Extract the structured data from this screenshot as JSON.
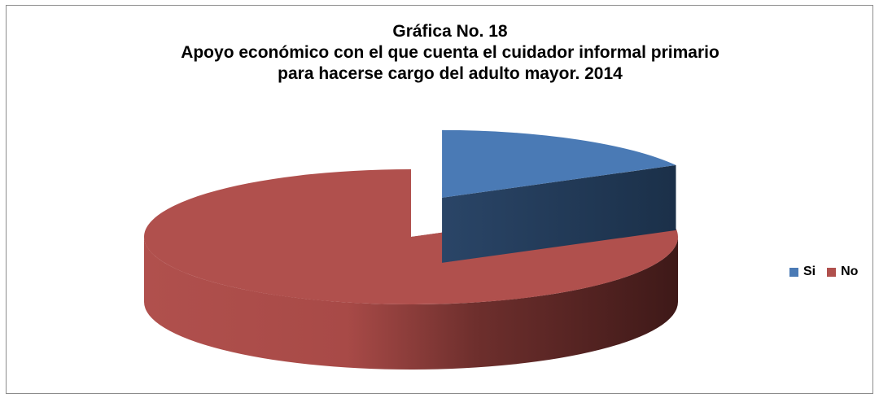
{
  "chart_data": {
    "type": "pie",
    "style": "3d-exploded",
    "title": "Gráfica No. 18",
    "subtitle_lines": [
      "Apoyo económico con el que cuenta el cuidador informal primario",
      "para hacerse cargo del adulto mayor. 2014"
    ],
    "categories": [
      "Si",
      "No"
    ],
    "values": [
      17,
      83
    ],
    "colors": [
      "#4a7ab5",
      "#b0504d"
    ],
    "legend_position": "right"
  }
}
